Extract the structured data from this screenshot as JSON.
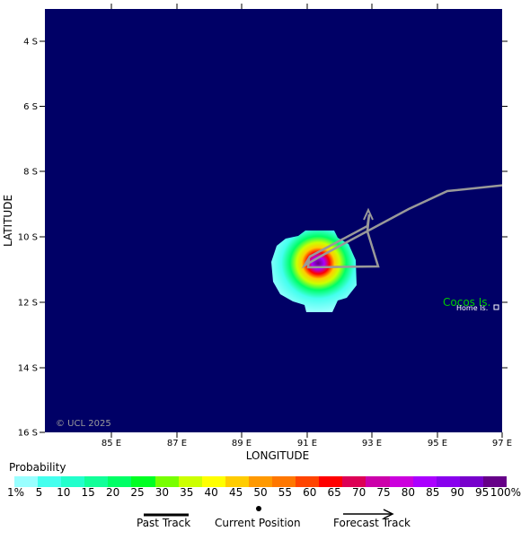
{
  "map": {
    "lat_labels": [
      "4 S",
      "6 S",
      "8 S",
      "10 S",
      "12 S",
      "14 S",
      "16 S"
    ],
    "lon_labels": [
      "85 E",
      "87 E",
      "89 E",
      "91 E",
      "93 E",
      "95 E",
      "97 E"
    ],
    "y_axis_title": "LATITUDE",
    "x_axis_title": "LONGITUDE",
    "copyright": "© UCL 2025",
    "place_name": "Cocos Is.",
    "place_sub": "Home Is.",
    "colors": {
      "ocean": "#000066",
      "track": "#999999",
      "place_name": "#00cc00",
      "copyright": "#9a9a9a"
    }
  },
  "legend": {
    "title": "Probability",
    "colors": [
      "#99ffff",
      "#44ffee",
      "#22ffcc",
      "#11ff99",
      "#00ff66",
      "#00ff22",
      "#77ff00",
      "#ccff00",
      "#ffff00",
      "#ffcc00",
      "#ff9900",
      "#ff7700",
      "#ff4400",
      "#ff0000",
      "#dd0055",
      "#cc00aa",
      "#cc00dd",
      "#aa00ff",
      "#8800ee",
      "#7700cc",
      "#660088"
    ],
    "labels": [
      "1%",
      "5",
      "10",
      "15",
      "20",
      "25",
      "30",
      "35",
      "40",
      "45",
      "50",
      "55",
      "60",
      "65",
      "70",
      "75",
      "80",
      "85",
      "90",
      "95",
      "100%"
    ]
  },
  "key": {
    "past_track": "Past Track",
    "current_position": "Current Position",
    "forecast_track": "Forecast Track"
  }
}
